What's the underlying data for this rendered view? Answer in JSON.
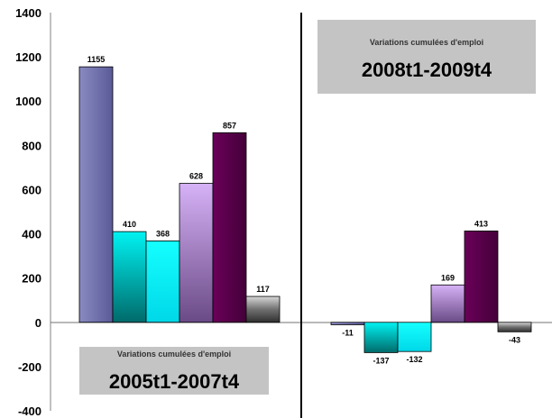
{
  "chart_data": {
    "type": "bar",
    "ylim": [
      -400,
      1400
    ],
    "yticks": [
      -400,
      -200,
      0,
      200,
      400,
      600,
      800,
      1000,
      1200,
      1400
    ],
    "grid": false,
    "panels": [
      {
        "box_small": "Variations cumulées d'emploi",
        "box_big": "2005t1-2007t4",
        "values": [
          1155,
          410,
          368,
          628,
          857,
          117
        ],
        "labels": [
          "1155",
          "410",
          "368",
          "628",
          "857",
          "117"
        ]
      },
      {
        "box_small": "Variations cumulées d'emploi",
        "box_big": "2008t1-2009t4",
        "values": [
          -11,
          -137,
          -132,
          169,
          413,
          -43
        ],
        "labels": [
          "-11",
          "-137",
          "-132",
          "169",
          "413",
          "-43"
        ]
      }
    ],
    "bar_colors": [
      "#6a6aa6",
      "#00dede",
      "#00f0f0",
      "#c59ae6",
      "#560048",
      "#707070"
    ]
  }
}
